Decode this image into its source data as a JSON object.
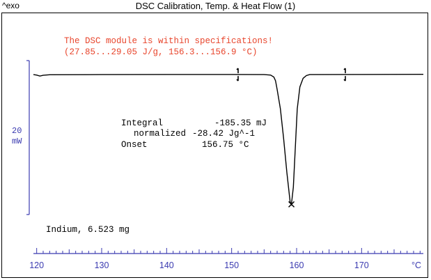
{
  "header": {
    "exo_label": "^exo",
    "title": "DSC Calibration, Temp. & Heat Flow (1)"
  },
  "colors": {
    "message": "#e8452c",
    "axis": "#3a3ab0",
    "curve": "#000000"
  },
  "chart_data": {
    "type": "line",
    "title": "DSC Calibration, Temp. & Heat Flow (1)",
    "xlabel": "°C",
    "ylabel": "",
    "xlim": [
      119.5,
      179.5
    ],
    "x_ticks": [
      120,
      130,
      140,
      150,
      160,
      170
    ],
    "x_tick_labels": [
      "120",
      "130",
      "140",
      "150",
      "160",
      "170"
    ],
    "x_unit": "°C",
    "scale_bar": {
      "value": "20",
      "unit": "mW"
    },
    "series": [
      {
        "points": [
          [
            119.5,
            0.0
          ],
          [
            120.0,
            -0.2
          ],
          [
            120.5,
            -0.6
          ],
          [
            121.0,
            -0.3
          ],
          [
            122.0,
            -0.05
          ],
          [
            130.0,
            0.0
          ],
          [
            140.0,
            0.05
          ],
          [
            150.0,
            0.05
          ],
          [
            155.0,
            0.0
          ],
          [
            156.0,
            -0.2
          ],
          [
            156.5,
            -1.0
          ],
          [
            156.75,
            -2.5
          ],
          [
            157.0,
            -6.0
          ],
          [
            157.5,
            -14.0
          ],
          [
            158.0,
            -26.0
          ],
          [
            158.5,
            -40.0
          ],
          [
            159.0,
            -52.0
          ],
          [
            159.2,
            -53.0
          ],
          [
            159.5,
            -46.0
          ],
          [
            159.8,
            -30.0
          ],
          [
            160.1,
            -14.0
          ],
          [
            160.5,
            -5.0
          ],
          [
            161.0,
            -1.5
          ],
          [
            161.5,
            -0.4
          ],
          [
            162.0,
            0.0
          ],
          [
            170.0,
            0.05
          ],
          [
            179.5,
            0.1
          ]
        ]
      }
    ],
    "integration_limits": [
      151.0,
      167.5
    ],
    "peak_marker": {
      "x": 159.2,
      "y": -53.0
    },
    "ylim": [
      -60,
      6
    ]
  },
  "annotations": {
    "spec_line1": "The DSC module is within specifications!",
    "spec_line2": "(27.85...29.05 J/g, 156.3...156.9 °C)",
    "integral_label": "Integral",
    "integral_value": "-185.35 mJ",
    "normalized_label": "normalized",
    "normalized_value": "-28.42 Jg^-1",
    "onset_label": "Onset",
    "onset_value": "156.75 °C",
    "sample": "Indium, 6.523 mg"
  }
}
